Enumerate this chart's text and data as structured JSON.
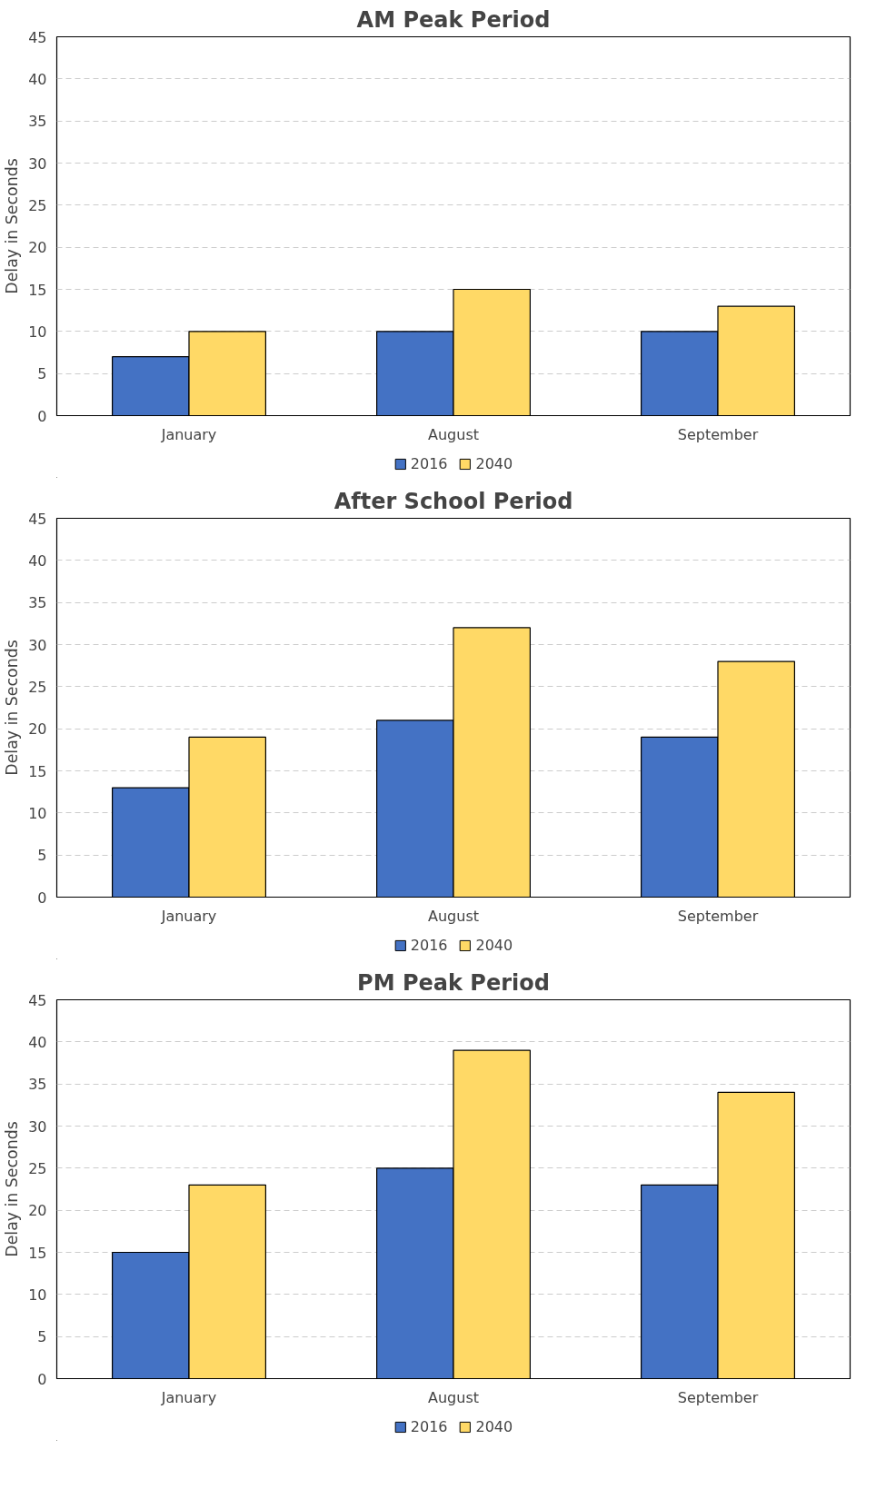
{
  "chart_data": [
    {
      "type": "bar",
      "title": "AM Peak Period",
      "ylabel": "Delay in Seconds",
      "categories": [
        "January",
        "August",
        "September"
      ],
      "series": [
        {
          "name": "2016",
          "color": "#4472c4",
          "values": [
            7,
            10,
            10
          ]
        },
        {
          "name": "2040",
          "color": "#ffd966",
          "values": [
            10,
            15,
            13
          ]
        }
      ],
      "ylim": [
        0,
        45
      ],
      "yticks": [
        0,
        5,
        10,
        15,
        20,
        25,
        30,
        35,
        40,
        45
      ],
      "grid": "y",
      "legend": "bottom"
    },
    {
      "type": "bar",
      "title": "After School Period",
      "ylabel": "Delay in Seconds",
      "categories": [
        "January",
        "August",
        "September"
      ],
      "series": [
        {
          "name": "2016",
          "color": "#4472c4",
          "values": [
            13,
            21,
            19
          ]
        },
        {
          "name": "2040",
          "color": "#ffd966",
          "values": [
            19,
            32,
            28
          ]
        }
      ],
      "ylim": [
        0,
        45
      ],
      "yticks": [
        0,
        5,
        10,
        15,
        20,
        25,
        30,
        35,
        40,
        45
      ],
      "grid": "y",
      "legend": "bottom"
    },
    {
      "type": "bar",
      "title": "PM Peak Period",
      "ylabel": "Delay in Seconds",
      "categories": [
        "January",
        "August",
        "September"
      ],
      "series": [
        {
          "name": "2016",
          "color": "#4472c4",
          "values": [
            15,
            25,
            23
          ]
        },
        {
          "name": "2040",
          "color": "#ffd966",
          "values": [
            23,
            39,
            34
          ]
        }
      ],
      "ylim": [
        0,
        45
      ],
      "yticks": [
        0,
        5,
        10,
        15,
        20,
        25,
        30,
        35,
        40,
        45
      ],
      "grid": "y",
      "legend": "bottom"
    }
  ]
}
